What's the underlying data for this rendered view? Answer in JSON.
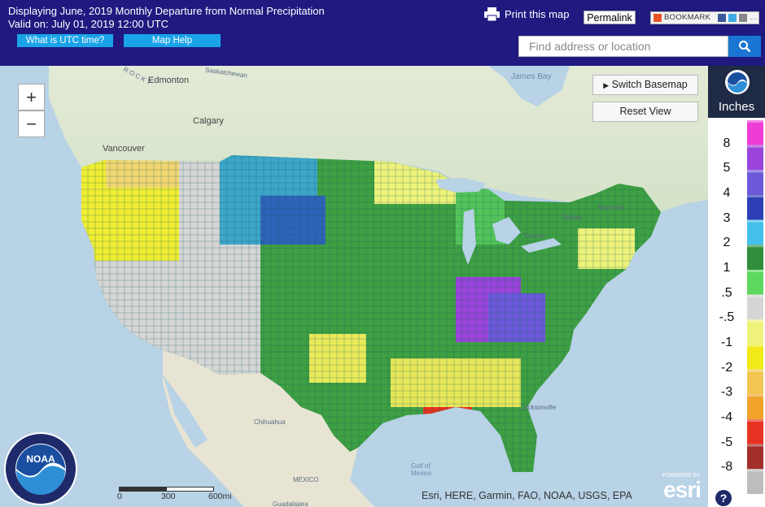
{
  "header": {
    "title": "Displaying June, 2019 Monthly Departure from Normal Precipitation",
    "valid": "Valid on: July 01, 2019 12:00 UTC",
    "utc_button": "What is UTC time?",
    "help_button": "Map Help",
    "print_label": "Print this map",
    "permalink_label": "Permalink",
    "bookmark_label": "BOOKMARK",
    "search_placeholder": "Find address or location"
  },
  "map": {
    "switch_basemap": "Switch Basemap",
    "reset_view": "Reset View",
    "zoom_in": "+",
    "zoom_out": "−",
    "attribution": "Esri, HERE, Garmin, FAO, NOAA, USGS, EPA",
    "scale": {
      "zero": "0",
      "mid": "300",
      "end": "600mi"
    },
    "places": {
      "edmonton": "Edmonton",
      "calgary": "Calgary",
      "vancouver": "Vancouver",
      "rocky": "R O C K Y",
      "saskatchewan": "Saskatchewan",
      "james_bay": "James Bay",
      "mexico": "MÉXICO",
      "guadalajara": "Guadalajara",
      "chihuahua": "Chihuahua",
      "montreal": "Montréal",
      "ottawa": "Ottawa",
      "toronto": "Toronto",
      "jacksonville": "Jacksonville",
      "gulf": "Gulf of Mexico"
    },
    "esri_powered": "POWERED BY",
    "esri_logo": "esri"
  },
  "legend": {
    "title": "Inches",
    "items": [
      {
        "label": "8",
        "color": "#ee3cd6"
      },
      {
        "label": "5",
        "color": "#9a44db"
      },
      {
        "label": "4",
        "color": "#6c59d9"
      },
      {
        "label": "3",
        "color": "#2e3fb5"
      },
      {
        "label": "2",
        "color": "#43c0ea"
      },
      {
        "label": "1",
        "color": "#2f8d3c"
      },
      {
        "label": ".5",
        "color": "#5fd85f"
      },
      {
        "label": "-.5",
        "color": "#d6d6d6"
      },
      {
        "label": "-1",
        "color": "#eef27a"
      },
      {
        "label": "-2",
        "color": "#f1ea18"
      },
      {
        "label": "-3",
        "color": "#f2c650"
      },
      {
        "label": "-4",
        "color": "#f0a22a"
      },
      {
        "label": "-5",
        "color": "#e83221"
      },
      {
        "label": "-8",
        "color": "#a22f2a"
      },
      {
        "label": "",
        "color": "#bdbdbd"
      }
    ]
  },
  "logo": {
    "agency": "NOAA",
    "ring_text": "NATIONAL OCEANIC AND ATMOSPHERIC ADMINISTRATION · U.S. DEPARTMENT OF COMMERCE"
  }
}
